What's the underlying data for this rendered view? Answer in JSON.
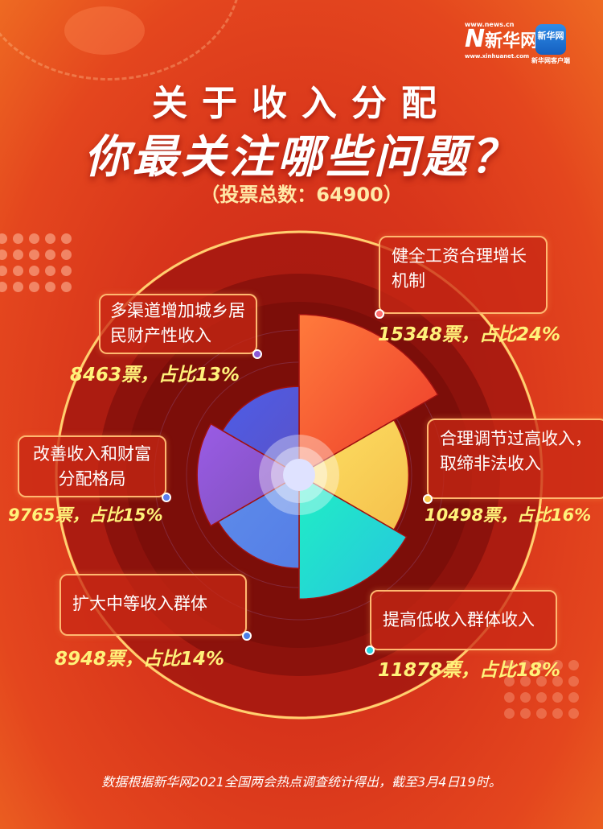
{
  "header": {
    "logo_news_url": "www.news.cn",
    "logo_news_name": "新华网",
    "logo_news_sub": "www.xinhuanet.com",
    "logo_app_name": "新华网",
    "logo_app_caption": "新华网客户端",
    "title_line1": "关于收入分配",
    "title_line2": "你最关注哪些问题？",
    "subtitle": "（投票总数：64900）"
  },
  "chart_data": {
    "type": "pie",
    "subtype": "nightingale-rose",
    "total_votes": 64900,
    "categories": [
      "健全工资合理增长机制",
      "合理调节过高收入，取缔非法收入",
      "提高低收入群体收入",
      "扩大中等收入群体",
      "改善收入和财富分配格局",
      "多渠道增加城乡居民财产性收入"
    ],
    "values": [
      15348,
      10498,
      11878,
      8948,
      9765,
      8463
    ],
    "percents": [
      24,
      16,
      18,
      14,
      15,
      13
    ],
    "value_labels": [
      "15348票，占比24%",
      "10498票，占比16%",
      "11878票，占比18%",
      "8948票，占比14%",
      "9765票，占比15%",
      "8463票，占比13%"
    ],
    "colors": [
      [
        "#ff7a3c",
        "#ec3a2a"
      ],
      [
        "#fde063",
        "#f5c04c"
      ],
      [
        "#1ff0c4",
        "#27c4df"
      ],
      [
        "#5e8cea",
        "#557ee6"
      ],
      [
        "#9a5ce6",
        "#7e4fb8"
      ],
      [
        "#4d5de8",
        "#5a52c8"
      ]
    ],
    "dot_colors": [
      "#ff6f6f",
      "#f9c84a",
      "#28d4e0",
      "#4a7fe8",
      "#5a7ff0",
      "#8a5ad8"
    ]
  },
  "footer": "数据根据新华网2021全国两会热点调查统计得出，截至3月4日19时。"
}
